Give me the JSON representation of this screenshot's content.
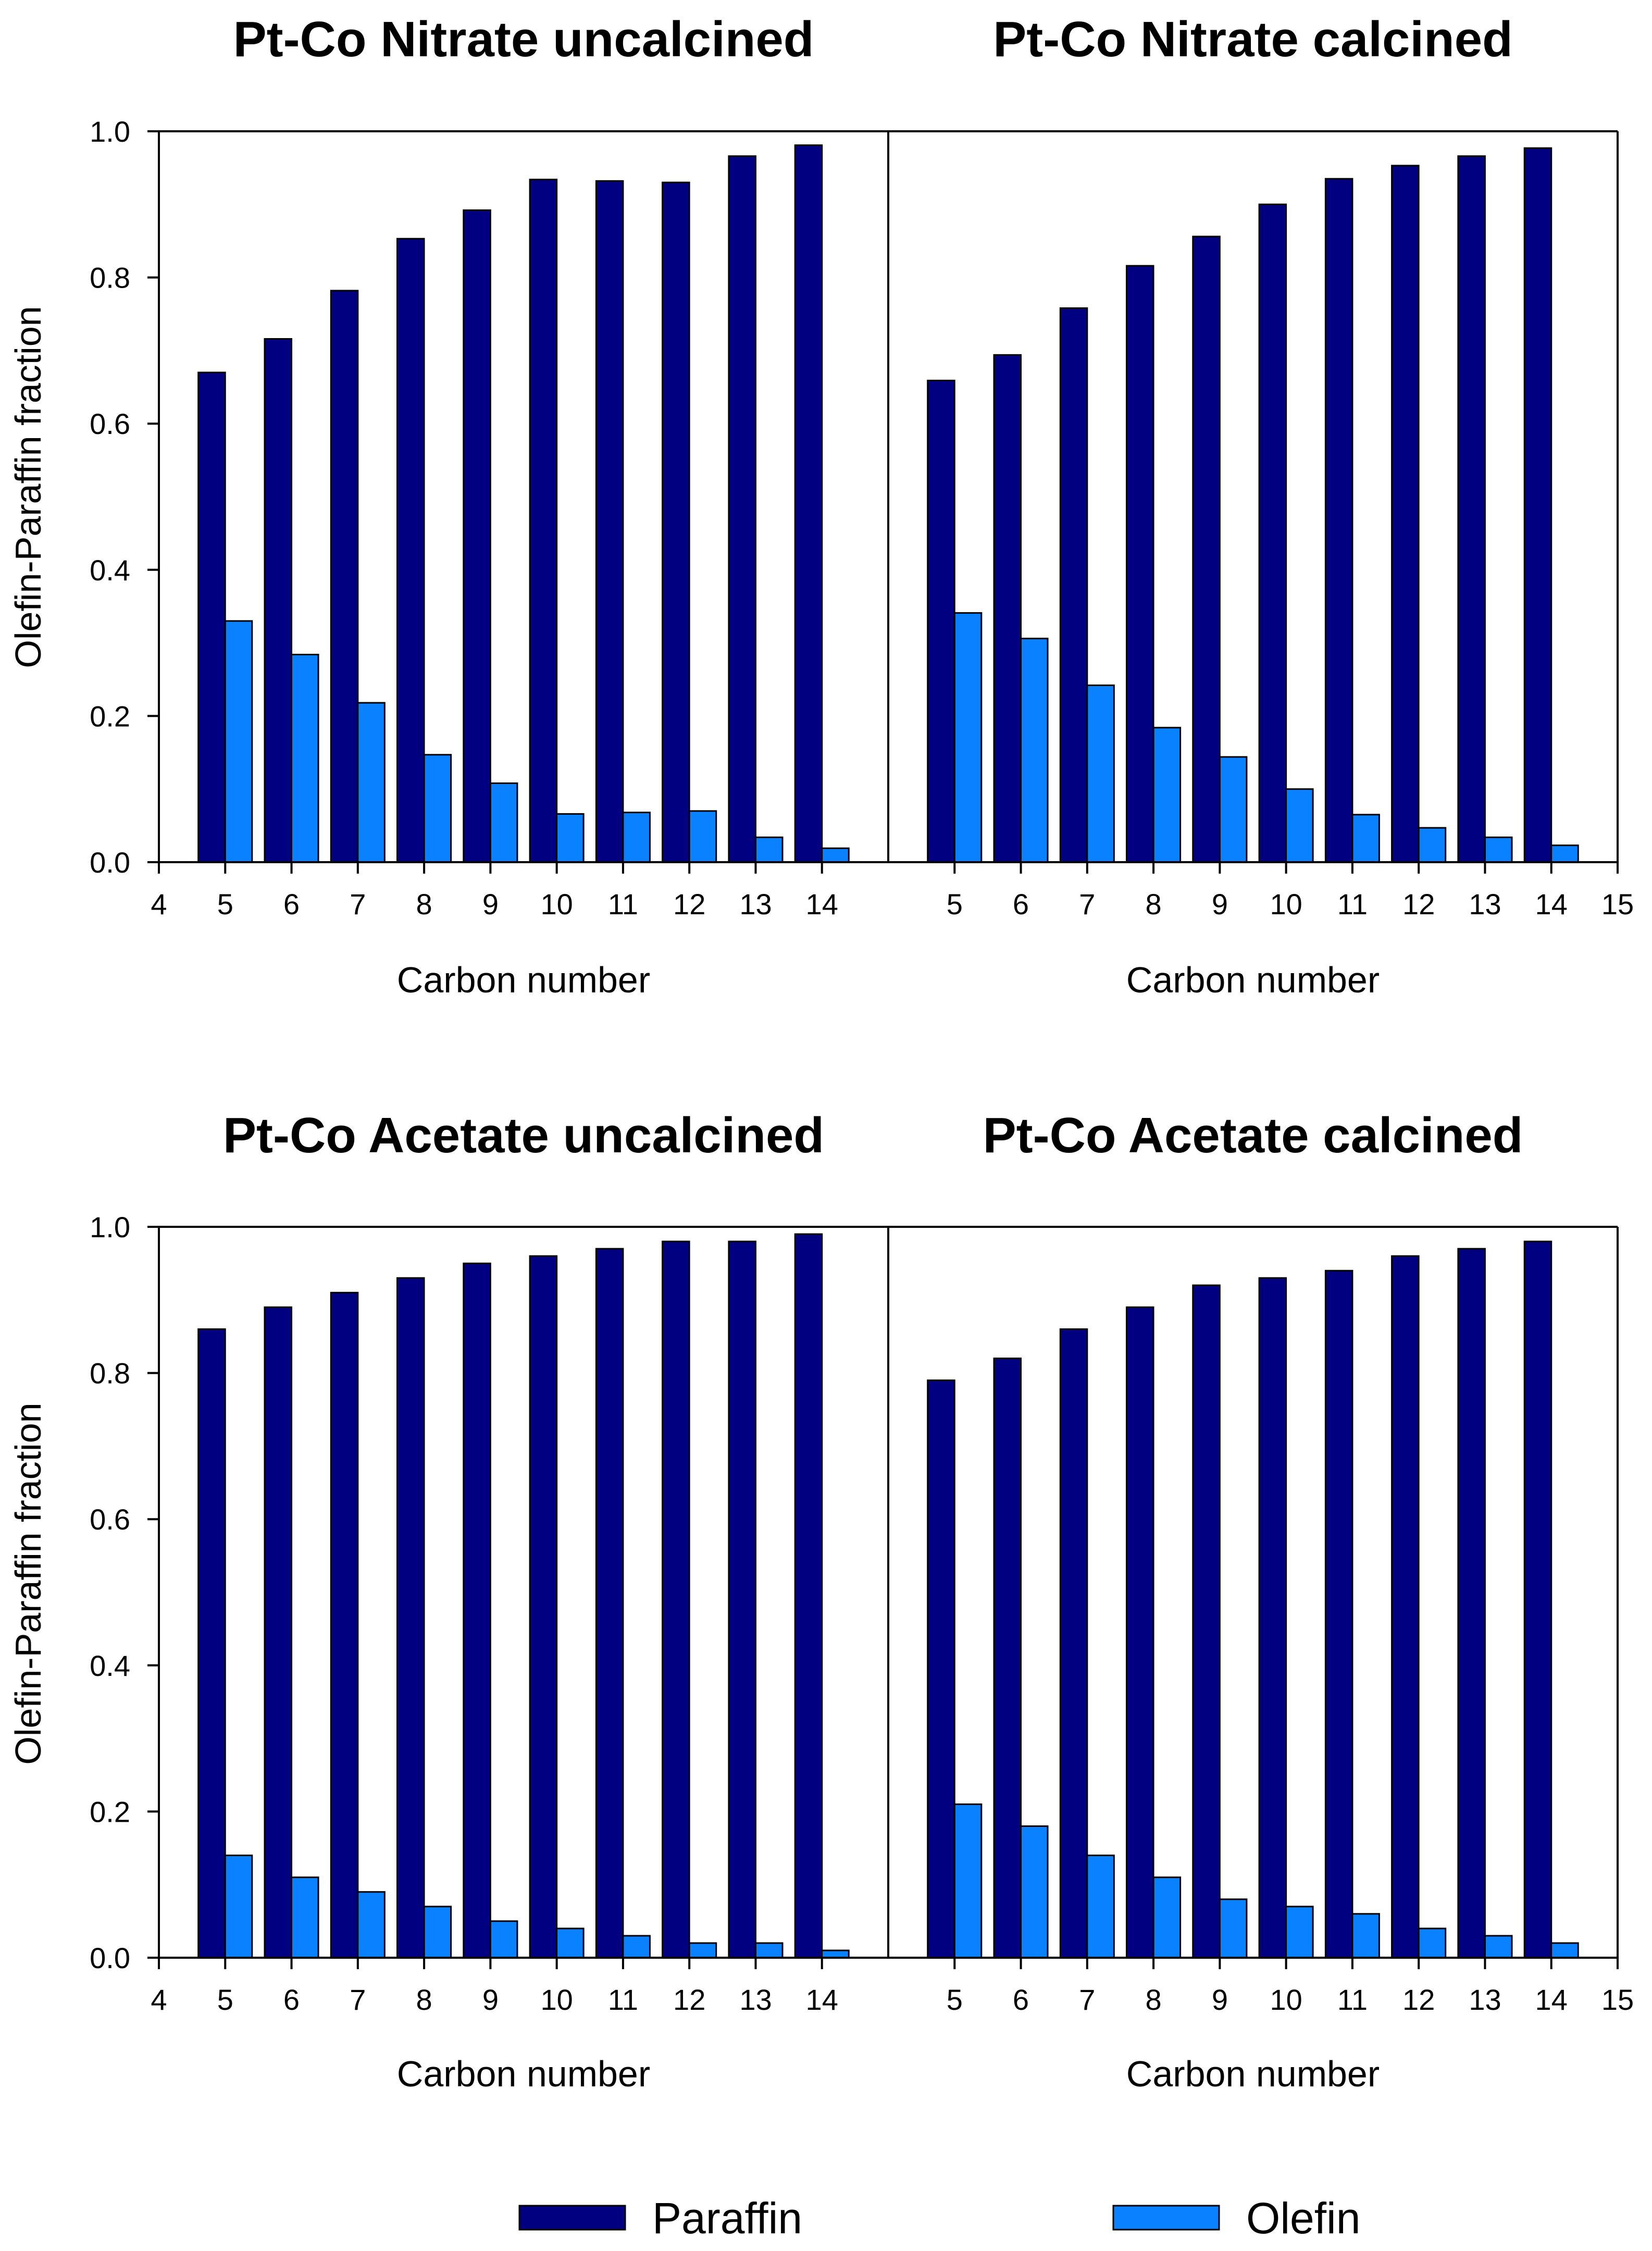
{
  "colors": {
    "paraffin": "#000080",
    "olefin": "#0a82ff",
    "axis": "#000000",
    "background": "#ffffff"
  },
  "legend": {
    "items": [
      {
        "key": "paraffin",
        "label": "Paraffin"
      },
      {
        "key": "olefin",
        "label": "Olefin"
      }
    ]
  },
  "chart_data": [
    {
      "type": "bar",
      "title": "Pt-Co Nitrate uncalcined",
      "xlabel": "Carbon number",
      "ylabel": "Olefin-Paraffin fraction",
      "xlim": [
        4,
        15
      ],
      "ylim": [
        0,
        1.0
      ],
      "x_ticks": [
        "4",
        "5",
        "6",
        "7",
        "8",
        "9",
        "10",
        "11",
        "12",
        "13",
        "14"
      ],
      "y_ticks": [
        "0.0",
        "0.2",
        "0.4",
        "0.6",
        "0.8",
        "1.0"
      ],
      "categories": [
        5,
        6,
        7,
        8,
        9,
        10,
        11,
        12,
        13,
        14
      ],
      "series": [
        {
          "name": "Paraffin",
          "values": [
            0.67,
            0.716,
            0.782,
            0.853,
            0.892,
            0.934,
            0.932,
            0.93,
            0.966,
            0.981
          ]
        },
        {
          "name": "Olefin",
          "values": [
            0.33,
            0.284,
            0.218,
            0.147,
            0.108,
            0.066,
            0.068,
            0.07,
            0.034,
            0.019
          ]
        }
      ]
    },
    {
      "type": "bar",
      "title": "Pt-Co Nitrate calcined",
      "xlabel": "Carbon number",
      "ylabel": "",
      "xlim": [
        4,
        15
      ],
      "ylim": [
        0,
        1.0
      ],
      "x_ticks": [
        "5",
        "6",
        "7",
        "8",
        "9",
        "10",
        "11",
        "12",
        "13",
        "14",
        "15"
      ],
      "y_ticks": [],
      "categories": [
        5,
        6,
        7,
        8,
        9,
        10,
        11,
        12,
        13,
        14
      ],
      "series": [
        {
          "name": "Paraffin",
          "values": [
            0.659,
            0.694,
            0.758,
            0.816,
            0.856,
            0.9,
            0.935,
            0.953,
            0.966,
            0.977
          ]
        },
        {
          "name": "Olefin",
          "values": [
            0.341,
            0.306,
            0.242,
            0.184,
            0.144,
            0.1,
            0.065,
            0.047,
            0.034,
            0.023
          ]
        }
      ]
    },
    {
      "type": "bar",
      "title": "Pt-Co Acetate uncalcined",
      "xlabel": "Carbon number",
      "ylabel": "Olefin-Paraffin fraction",
      "xlim": [
        4,
        15
      ],
      "ylim": [
        0,
        1.0
      ],
      "x_ticks": [
        "4",
        "5",
        "6",
        "7",
        "8",
        "9",
        "10",
        "11",
        "12",
        "13",
        "14"
      ],
      "y_ticks": [
        "0.0",
        "0.2",
        "0.4",
        "0.6",
        "0.8",
        "1.0"
      ],
      "categories": [
        5,
        6,
        7,
        8,
        9,
        10,
        11,
        12,
        13,
        14
      ],
      "series": [
        {
          "name": "Paraffin",
          "values": [
            0.86,
            0.89,
            0.91,
            0.93,
            0.95,
            0.96,
            0.97,
            0.98,
            0.98,
            0.99
          ]
        },
        {
          "name": "Olefin",
          "values": [
            0.14,
            0.11,
            0.09,
            0.07,
            0.05,
            0.04,
            0.03,
            0.02,
            0.02,
            0.01
          ]
        }
      ]
    },
    {
      "type": "bar",
      "title": "Pt-Co Acetate calcined",
      "xlabel": "Carbon number",
      "ylabel": "",
      "xlim": [
        4,
        15
      ],
      "ylim": [
        0,
        1.0
      ],
      "x_ticks": [
        "5",
        "6",
        "7",
        "8",
        "9",
        "10",
        "11",
        "12",
        "13",
        "14",
        "15"
      ],
      "y_ticks": [],
      "categories": [
        5,
        6,
        7,
        8,
        9,
        10,
        11,
        12,
        13,
        14
      ],
      "series": [
        {
          "name": "Paraffin",
          "values": [
            0.79,
            0.82,
            0.86,
            0.89,
            0.92,
            0.93,
            0.94,
            0.96,
            0.97,
            0.98
          ]
        },
        {
          "name": "Olefin",
          "values": [
            0.21,
            0.18,
            0.14,
            0.11,
            0.08,
            0.07,
            0.06,
            0.04,
            0.03,
            0.02
          ]
        }
      ]
    }
  ]
}
